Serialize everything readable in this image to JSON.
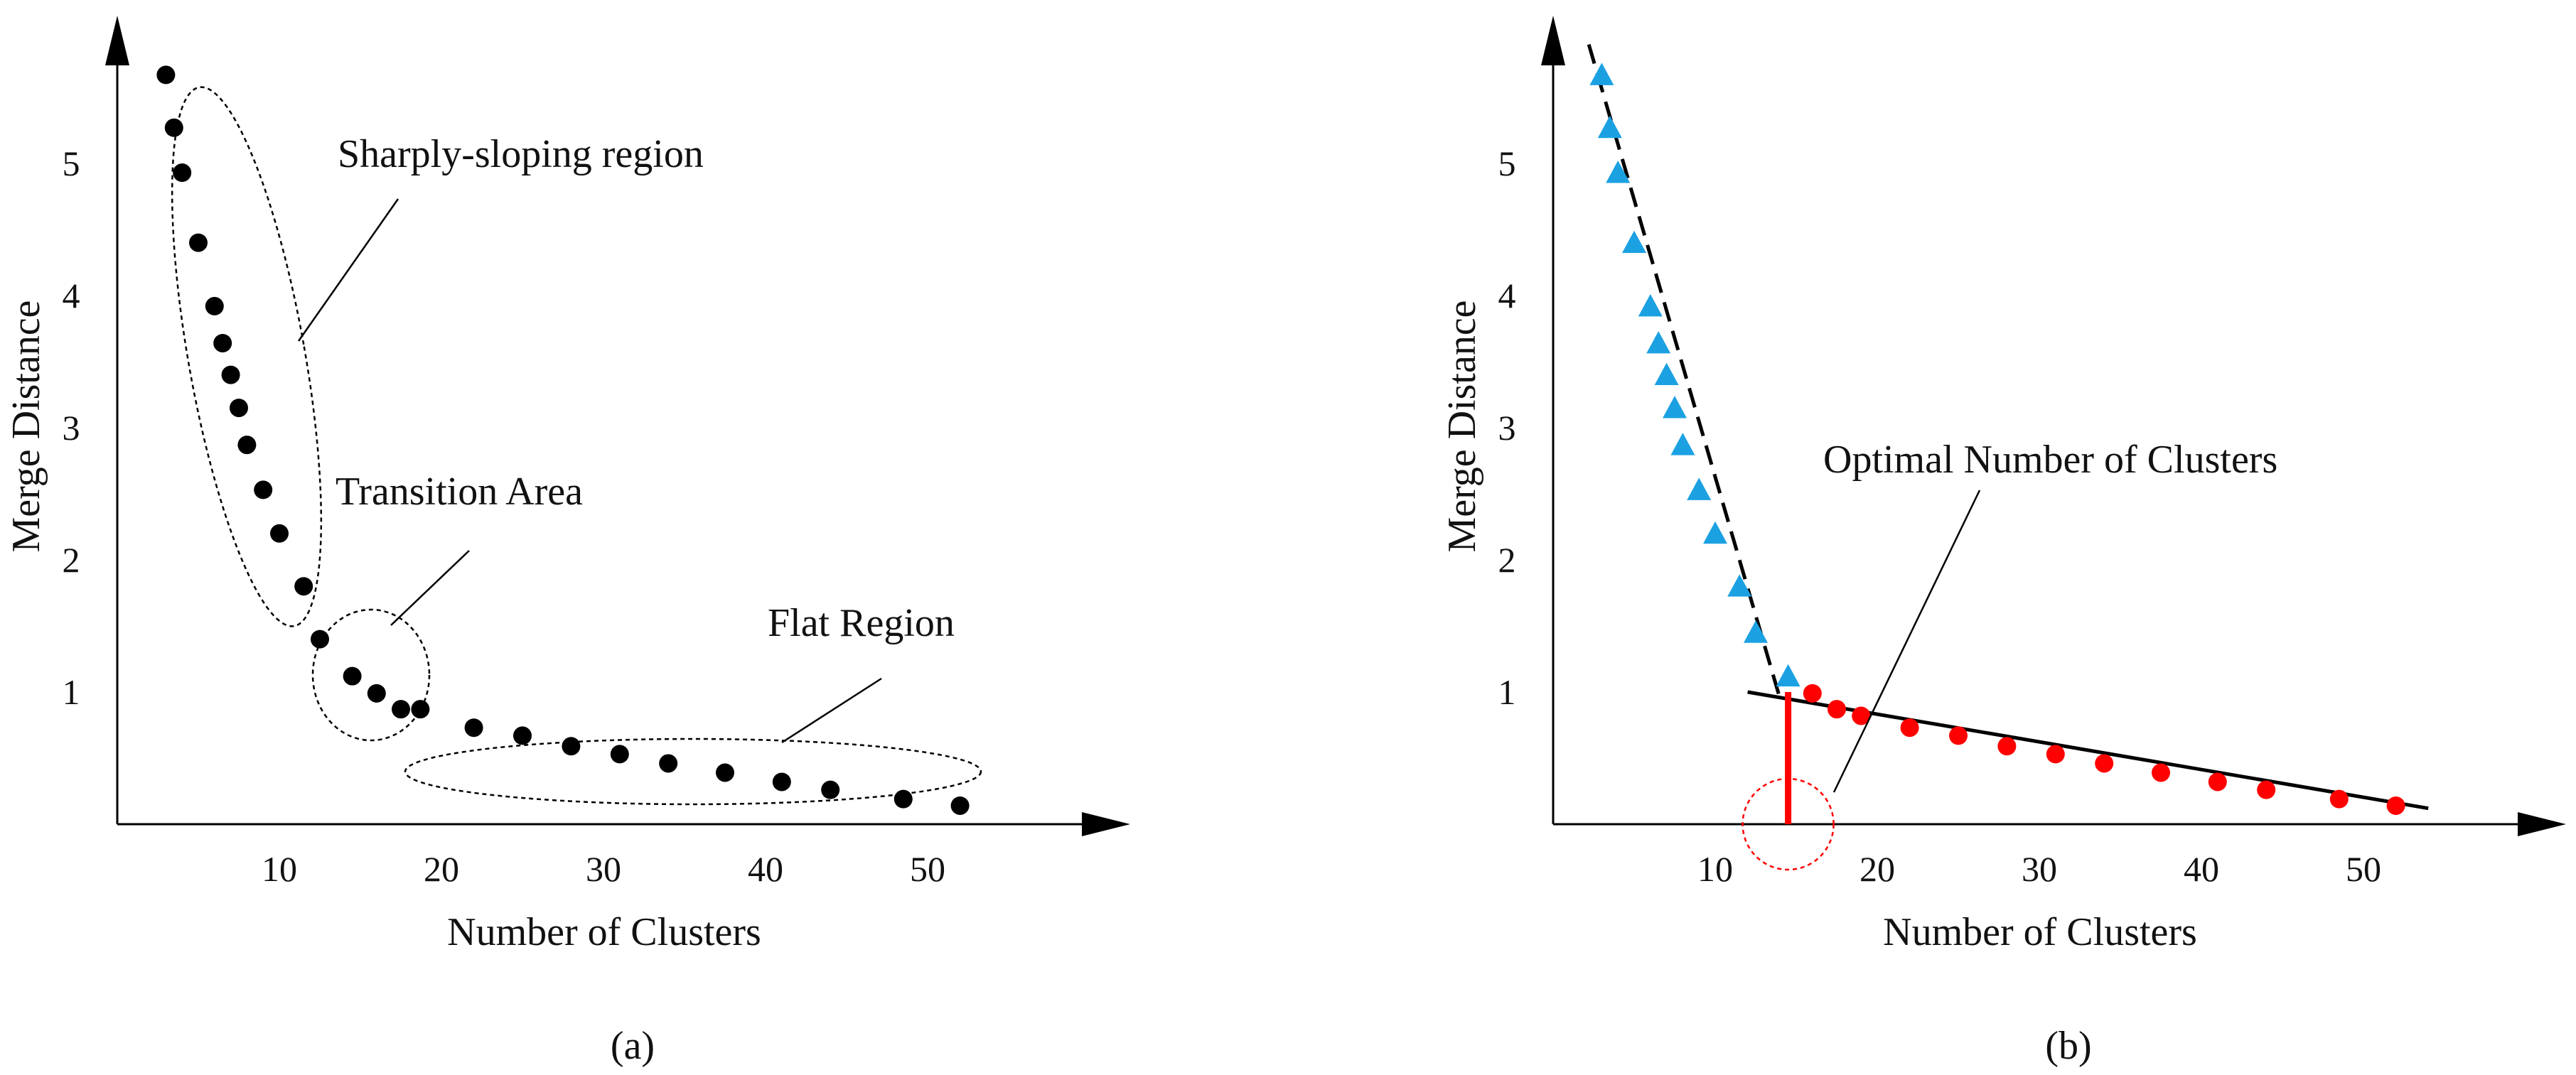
{
  "chart_data": [
    {
      "panel": "a",
      "type": "scatter",
      "caption": "(a)",
      "xlabel": "Number of Clusters",
      "ylabel": "Merge Distance",
      "xticks": [
        10,
        20,
        30,
        40,
        50
      ],
      "yticks": [
        1,
        2,
        3,
        4,
        5
      ],
      "xlim": [
        0,
        58
      ],
      "ylim": [
        0,
        5.9
      ],
      "grid": false,
      "colors": {
        "points": "#000000"
      },
      "series": [
        {
          "points": [
            [
              3,
              5.67
            ],
            [
              3.5,
              5.27
            ],
            [
              4,
              4.93
            ],
            [
              5,
              4.4
            ],
            [
              6,
              3.92
            ],
            [
              6.5,
              3.64
            ],
            [
              7,
              3.4
            ],
            [
              7.5,
              3.15
            ],
            [
              8,
              2.87
            ],
            [
              9,
              2.53
            ],
            [
              10,
              2.2
            ],
            [
              11.5,
              1.8
            ],
            [
              12.5,
              1.4
            ],
            [
              14.5,
              1.12
            ],
            [
              16,
              0.99
            ],
            [
              17.5,
              0.87
            ],
            [
              18.7,
              0.87
            ],
            [
              22,
              0.73
            ],
            [
              25,
              0.67
            ],
            [
              28,
              0.59
            ],
            [
              31,
              0.53
            ],
            [
              34,
              0.46
            ],
            [
              37.5,
              0.39
            ],
            [
              41,
              0.32
            ],
            [
              44,
              0.26
            ],
            [
              48.5,
              0.19
            ],
            [
              52,
              0.14
            ]
          ]
        }
      ],
      "annotations": [
        {
          "text": "Sharply-sloping region"
        },
        {
          "text": "Transition Area"
        },
        {
          "text": "Flat Region"
        }
      ]
    },
    {
      "panel": "b",
      "type": "scatter",
      "caption": "(b)",
      "xlabel": "Number of Clusters",
      "ylabel": "Merge Distance",
      "xticks": [
        10,
        20,
        30,
        40,
        50
      ],
      "yticks": [
        1,
        2,
        3,
        4,
        5
      ],
      "xlim": [
        0,
        58
      ],
      "ylim": [
        0,
        5.9
      ],
      "grid": false,
      "colors": {
        "triangles": "#1ba1e2",
        "circles": "#ff0000",
        "optimal_line": "#ff0000",
        "fit_lines": "#000000"
      },
      "series": [
        {
          "marker": "triangle",
          "points": [
            [
              3,
              5.67
            ],
            [
              3.5,
              5.27
            ],
            [
              4,
              4.93
            ],
            [
              5,
              4.4
            ],
            [
              6,
              3.92
            ],
            [
              6.5,
              3.64
            ],
            [
              7,
              3.4
            ],
            [
              7.5,
              3.15
            ],
            [
              8,
              2.87
            ],
            [
              9,
              2.53
            ],
            [
              10,
              2.2
            ],
            [
              11.5,
              1.8
            ],
            [
              12.5,
              1.45
            ],
            [
              14.5,
              1.12
            ]
          ]
        },
        {
          "marker": "circle",
          "points": [
            [
              16,
              0.99
            ],
            [
              17.5,
              0.87
            ],
            [
              19,
              0.82
            ],
            [
              22,
              0.73
            ],
            [
              25,
              0.67
            ],
            [
              28,
              0.59
            ],
            [
              31,
              0.53
            ],
            [
              34,
              0.46
            ],
            [
              37.5,
              0.39
            ],
            [
              41,
              0.32
            ],
            [
              44,
              0.26
            ],
            [
              48.5,
              0.19
            ],
            [
              52,
              0.14
            ]
          ]
        }
      ],
      "fit_lines": [
        {
          "style": "dashed",
          "from": [
            2.2,
            5.9
          ],
          "to": [
            14.0,
            0.95
          ]
        },
        {
          "style": "solid",
          "from": [
            12,
            1.0
          ],
          "to": [
            54,
            0.12
          ]
        }
      ],
      "optimal_clusters": 14.5,
      "optimal_value": 1.0,
      "annotations": [
        {
          "text": "Optimal Number of Clusters"
        }
      ]
    }
  ]
}
